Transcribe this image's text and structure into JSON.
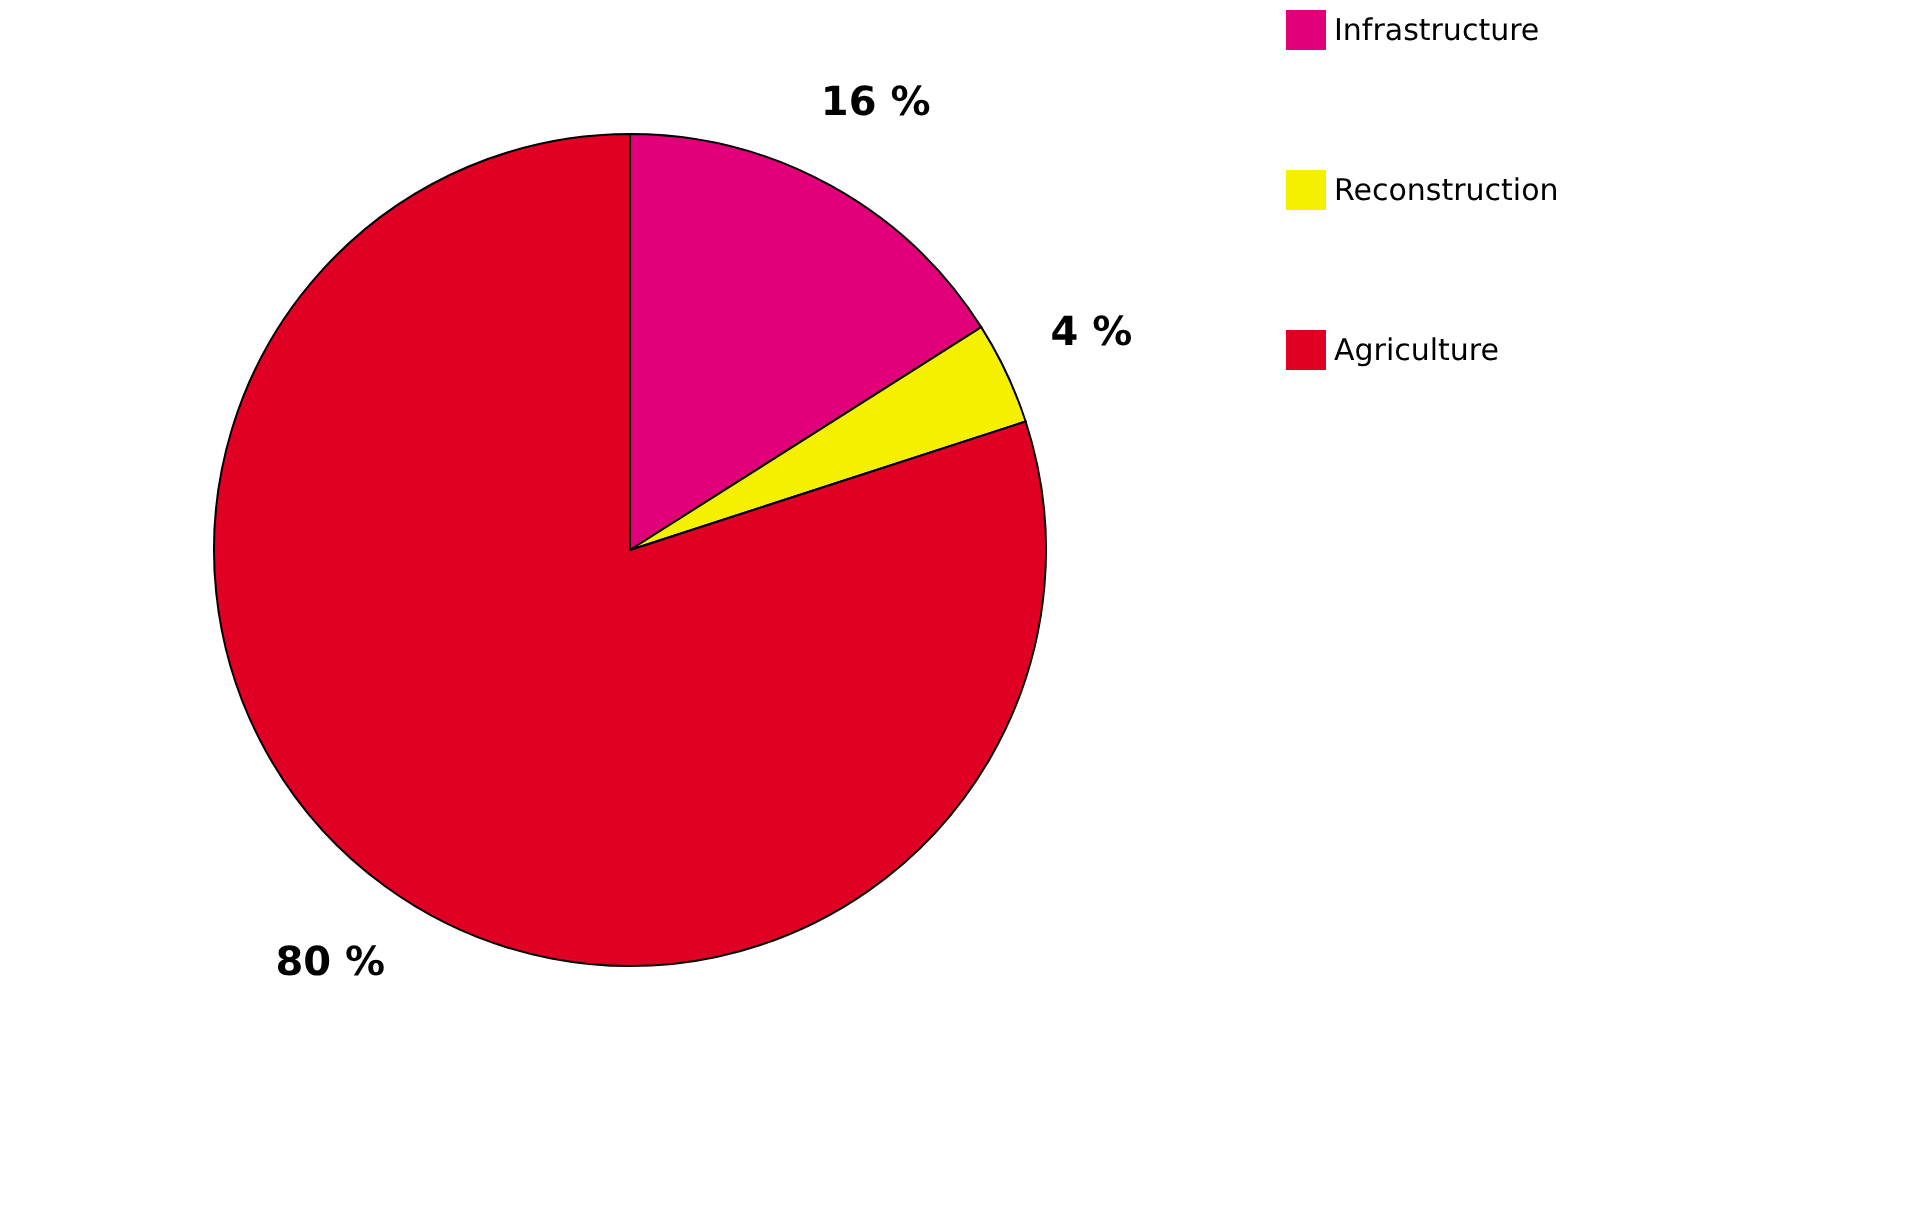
{
  "chart_data": {
    "type": "pie",
    "categories": [
      "Infrastructure",
      "Reconstruction",
      "Agriculture"
    ],
    "values": [
      16,
      4,
      80
    ],
    "colors": [
      "#e2007a",
      "#f5f000",
      "#e00024"
    ],
    "value_labels": [
      "16 %",
      "4 %",
      "80 %"
    ],
    "legend": "right"
  }
}
